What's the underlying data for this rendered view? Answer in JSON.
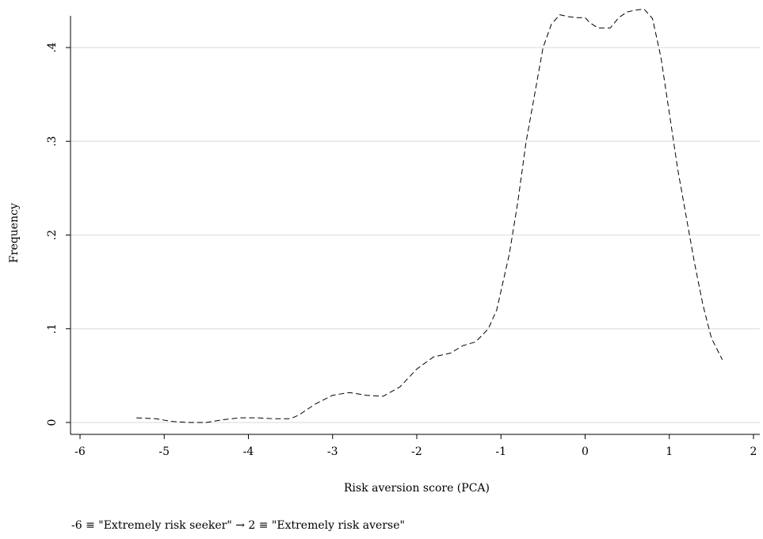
{
  "chart_data": {
    "type": "line",
    "title": "",
    "xlabel": "Risk aversion score (PCA)",
    "ylabel": "Frequency",
    "note": "-6 ≡ \"Extremely risk seeker\"  → 2 ≡ \"Extremely risk averse\"",
    "xlim": [
      -6,
      2
    ],
    "ylim": [
      0,
      0.45
    ],
    "grid": true,
    "x_ticks": [
      {
        "value": -6,
        "label": "-6"
      },
      {
        "value": -5,
        "label": "-5"
      },
      {
        "value": -4,
        "label": "-4"
      },
      {
        "value": -3,
        "label": "-3"
      },
      {
        "value": -2,
        "label": "-2"
      },
      {
        "value": -1,
        "label": "-1"
      },
      {
        "value": 0,
        "label": "0"
      },
      {
        "value": 1,
        "label": "1"
      },
      {
        "value": 2,
        "label": "2"
      }
    ],
    "y_ticks": [
      {
        "value": 0,
        "label": "0"
      },
      {
        "value": 0.1,
        "label": ".1"
      },
      {
        "value": 0.2,
        "label": ".2"
      },
      {
        "value": 0.3,
        "label": ".3"
      },
      {
        "value": 0.4,
        "label": ".4"
      }
    ],
    "series": [
      {
        "line_style": "dashed",
        "color": "#000000",
        "x": [
          -5.33,
          -5.1,
          -4.9,
          -4.7,
          -4.5,
          -4.3,
          -4.1,
          -3.9,
          -3.7,
          -3.5,
          -3.4,
          -3.2,
          -3.0,
          -2.8,
          -2.6,
          -2.4,
          -2.2,
          -2.0,
          -1.8,
          -1.6,
          -1.45,
          -1.3,
          -1.15,
          -1.05,
          -0.9,
          -0.8,
          -0.7,
          -0.6,
          -0.5,
          -0.4,
          -0.3,
          -0.2,
          -0.1,
          0.0,
          0.05,
          0.15,
          0.3,
          0.4,
          0.5,
          0.6,
          0.7,
          0.8,
          0.9,
          1.0,
          1.1,
          1.2,
          1.3,
          1.4,
          1.5,
          1.63
        ],
        "y": [
          0.005,
          0.004,
          0.001,
          0.0,
          0.0,
          0.003,
          0.005,
          0.005,
          0.004,
          0.004,
          0.008,
          0.02,
          0.029,
          0.032,
          0.029,
          0.028,
          0.038,
          0.057,
          0.07,
          0.074,
          0.082,
          0.086,
          0.1,
          0.12,
          0.18,
          0.235,
          0.3,
          0.35,
          0.4,
          0.425,
          0.435,
          0.433,
          0.432,
          0.432,
          0.427,
          0.421,
          0.421,
          0.432,
          0.438,
          0.44,
          0.441,
          0.431,
          0.39,
          0.33,
          0.27,
          0.22,
          0.17,
          0.125,
          0.09,
          0.067
        ]
      }
    ]
  }
}
